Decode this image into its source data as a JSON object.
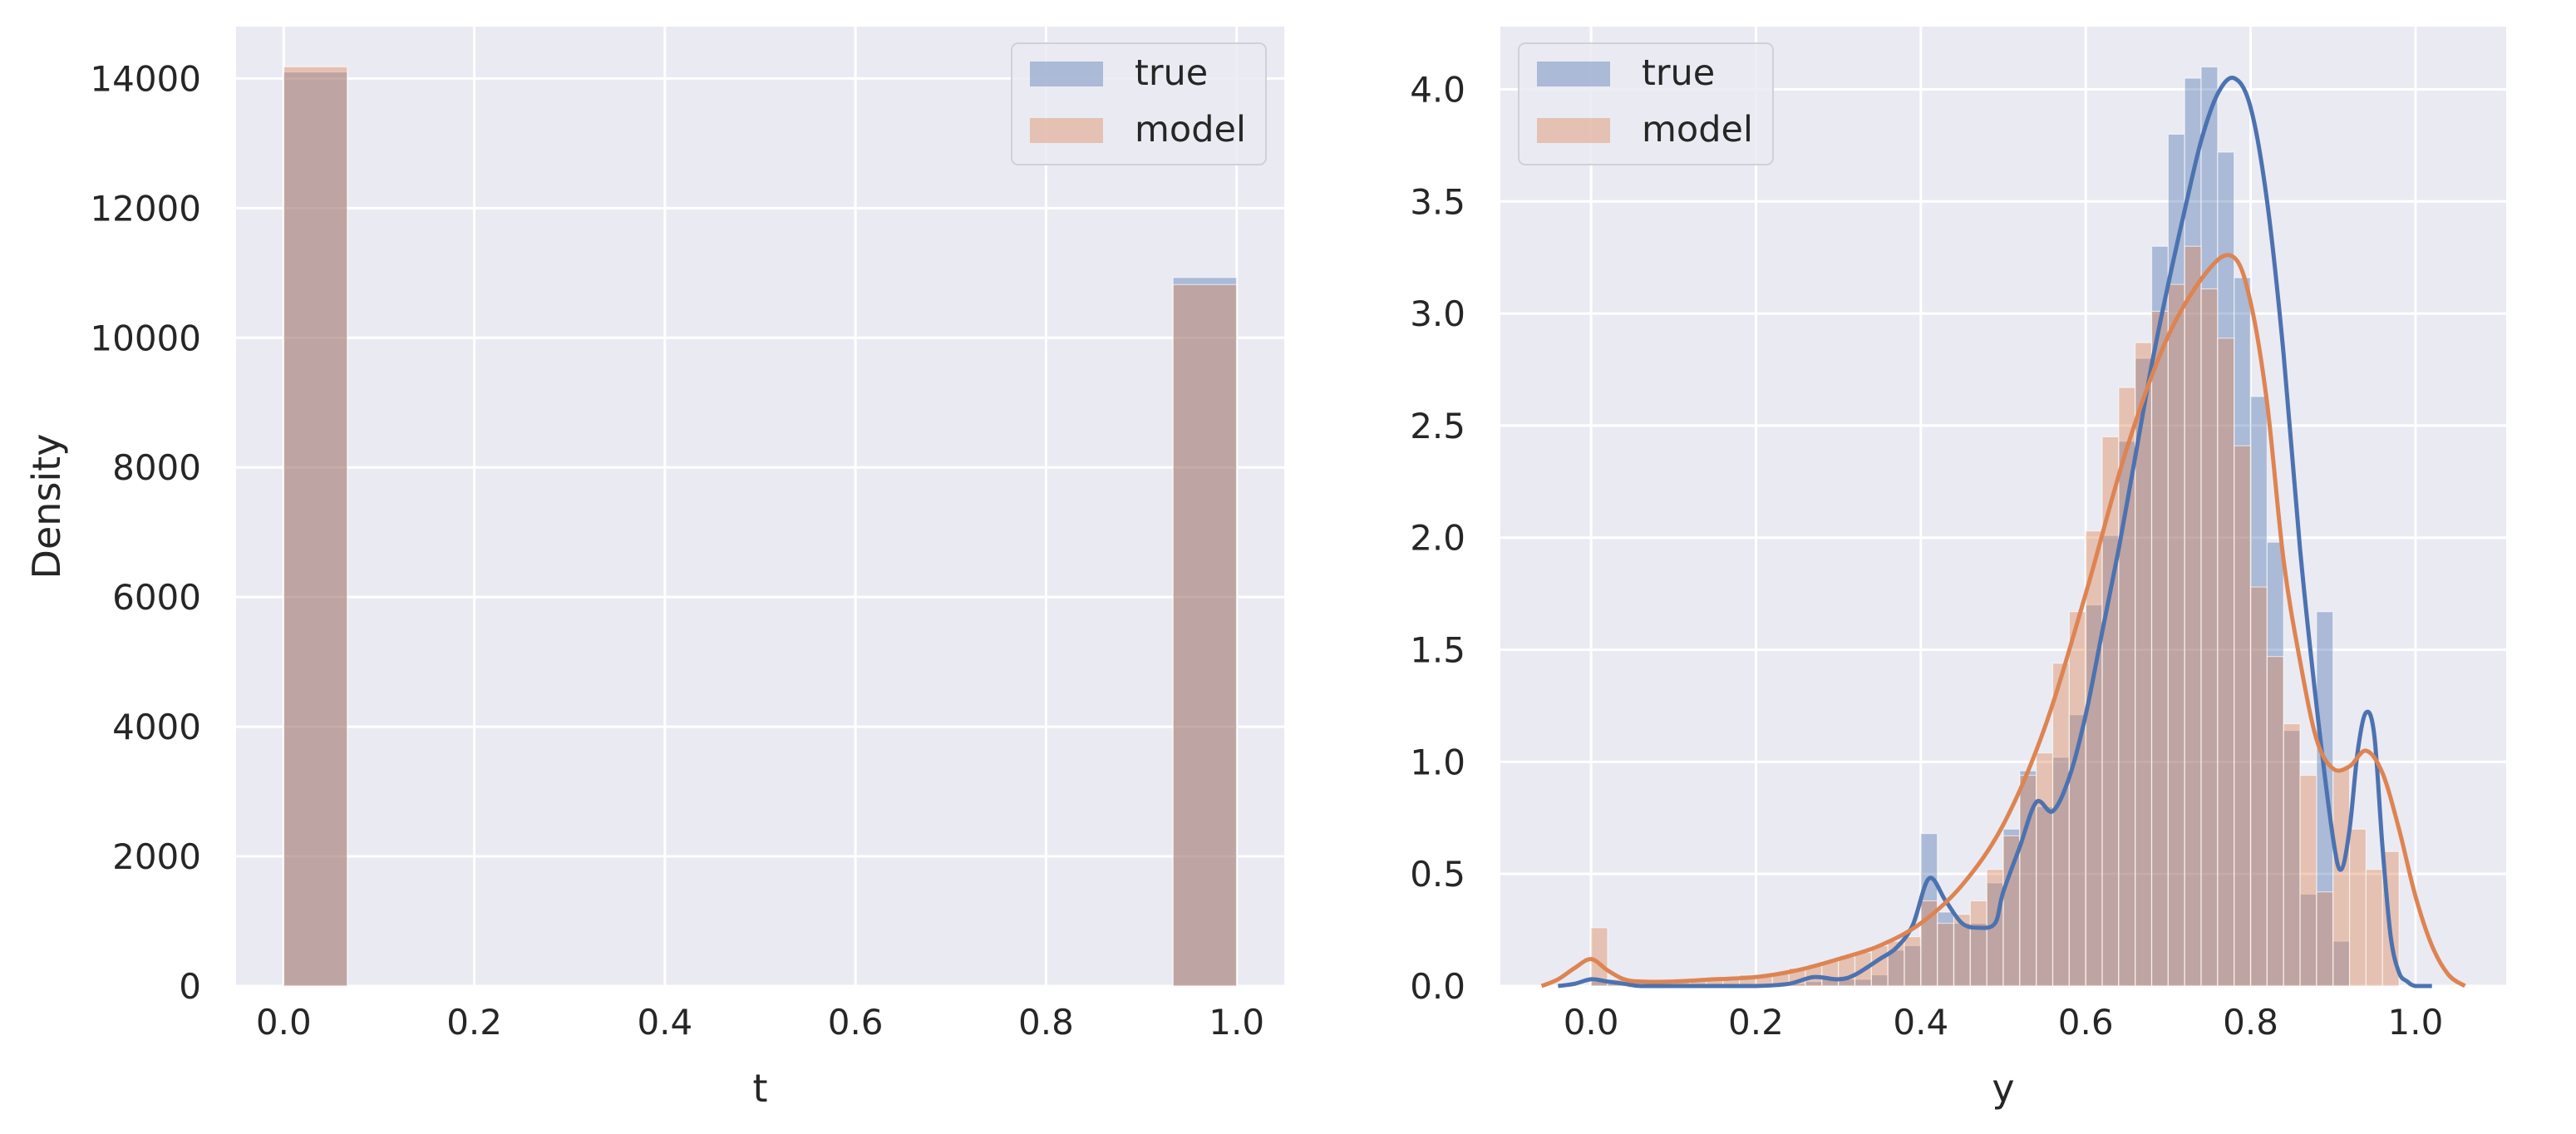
{
  "chart_data": [
    {
      "type": "histogram",
      "xlabel": "t",
      "ylabel": "Density",
      "xlim": [
        -0.05,
        1.05
      ],
      "ylim": [
        0,
        14800
      ],
      "xticks": [
        0.0,
        0.2,
        0.4,
        0.6,
        0.8,
        1.0
      ],
      "xtick_labels": [
        "0.0",
        "0.2",
        "0.4",
        "0.6",
        "0.8",
        "1.0"
      ],
      "yticks": [
        0,
        2000,
        4000,
        6000,
        8000,
        10000,
        12000,
        14000
      ],
      "ytick_labels": [
        "0",
        "2000",
        "4000",
        "6000",
        "8000",
        "10000",
        "12000",
        "14000"
      ],
      "grid": true,
      "legend_position": "top-right",
      "series": [
        {
          "name": "true",
          "color": "#4c72b0",
          "bins": [
            {
              "x0": 0.0,
              "x1": 0.0667,
              "value": 14100
            },
            {
              "x0": 0.9333,
              "x1": 1.0,
              "value": 10930
            }
          ]
        },
        {
          "name": "model",
          "color": "#dd8452",
          "bins": [
            {
              "x0": 0.0,
              "x1": 0.0667,
              "value": 14180
            },
            {
              "x0": 0.9333,
              "x1": 1.0,
              "value": 10820
            }
          ]
        }
      ]
    },
    {
      "type": "histogram",
      "xlabel": "y",
      "ylabel": "",
      "xlim": [
        -0.11,
        1.11
      ],
      "ylim": [
        0,
        4.28
      ],
      "xticks": [
        0.0,
        0.2,
        0.4,
        0.6,
        0.8,
        1.0
      ],
      "xtick_labels": [
        "0.0",
        "0.2",
        "0.4",
        "0.6",
        "0.8",
        "1.0"
      ],
      "yticks": [
        0.0,
        0.5,
        1.0,
        1.5,
        2.0,
        2.5,
        3.0,
        3.5,
        4.0
      ],
      "ytick_labels": [
        "0.0",
        "0.5",
        "1.0",
        "1.5",
        "2.0",
        "2.5",
        "3.0",
        "3.5",
        "4.0"
      ],
      "grid": true,
      "legend_position": "top-left",
      "bin_start": 0.0,
      "bin_width": 0.02,
      "series": [
        {
          "name": "true",
          "color": "#4c72b0",
          "hist": [
            0.02,
            0.01,
            0.0,
            0.0,
            0.0,
            0.0,
            0.0,
            0.0,
            0.0,
            0.0,
            0.0,
            0.01,
            0.01,
            0.02,
            0.04,
            0.03,
            0.03,
            0.05,
            0.16,
            0.18,
            0.68,
            0.33,
            0.28,
            0.28,
            0.46,
            0.7,
            0.96,
            0.8,
            1.02,
            1.21,
            1.7,
            2.01,
            2.43,
            2.8,
            3.3,
            3.8,
            4.05,
            4.1,
            3.72,
            3.16,
            2.63,
            1.98,
            1.14,
            0.41,
            1.67,
            0.2,
            0.0,
            0.0,
            0.0,
            0.0
          ],
          "kde_x": [
            -0.04,
            -0.02,
            0.0,
            0.02,
            0.04,
            0.06,
            0.1,
            0.15,
            0.2,
            0.24,
            0.27,
            0.3,
            0.32,
            0.35,
            0.37,
            0.39,
            0.41,
            0.43,
            0.45,
            0.47,
            0.49,
            0.5,
            0.52,
            0.54,
            0.56,
            0.58,
            0.6,
            0.62,
            0.64,
            0.66,
            0.68,
            0.7,
            0.72,
            0.74,
            0.76,
            0.78,
            0.8,
            0.82,
            0.84,
            0.86,
            0.88,
            0.9,
            0.91,
            0.92,
            0.93,
            0.94,
            0.95,
            0.96,
            0.97,
            0.98,
            0.99,
            1.0,
            1.02
          ],
          "kde_y": [
            0.0,
            0.01,
            0.03,
            0.02,
            0.01,
            0.0,
            0.0,
            0.0,
            0.0,
            0.01,
            0.04,
            0.03,
            0.05,
            0.12,
            0.17,
            0.27,
            0.48,
            0.38,
            0.28,
            0.26,
            0.28,
            0.42,
            0.62,
            0.82,
            0.78,
            0.93,
            1.21,
            1.58,
            1.95,
            2.36,
            2.77,
            3.13,
            3.46,
            3.77,
            3.98,
            4.05,
            3.92,
            3.5,
            2.82,
            1.95,
            1.25,
            0.66,
            0.52,
            0.7,
            1.05,
            1.22,
            1.12,
            0.62,
            0.22,
            0.06,
            0.02,
            0.0,
            0.0
          ]
        },
        {
          "name": "model",
          "color": "#dd8452",
          "hist": [
            0.26,
            0.03,
            0.02,
            0.02,
            0.02,
            0.02,
            0.02,
            0.03,
            0.04,
            0.05,
            0.05,
            0.06,
            0.08,
            0.09,
            0.11,
            0.13,
            0.15,
            0.18,
            0.2,
            0.22,
            0.38,
            0.28,
            0.32,
            0.38,
            0.52,
            0.67,
            0.94,
            1.04,
            1.44,
            1.67,
            2.03,
            2.45,
            2.67,
            2.87,
            3.01,
            3.13,
            3.3,
            3.11,
            2.89,
            2.41,
            1.78,
            1.47,
            1.17,
            0.94,
            0.42,
            0.97,
            0.7,
            0.52,
            0.6,
            0.0
          ],
          "kde_x": [
            -0.06,
            -0.04,
            -0.02,
            0.0,
            0.02,
            0.04,
            0.06,
            0.1,
            0.15,
            0.2,
            0.25,
            0.3,
            0.35,
            0.4,
            0.45,
            0.5,
            0.55,
            0.6,
            0.65,
            0.7,
            0.75,
            0.78,
            0.8,
            0.82,
            0.84,
            0.86,
            0.88,
            0.9,
            0.92,
            0.94,
            0.96,
            0.98,
            1.0,
            1.02,
            1.04,
            1.06
          ],
          "kde_y": [
            0.0,
            0.03,
            0.08,
            0.12,
            0.07,
            0.03,
            0.02,
            0.02,
            0.03,
            0.04,
            0.07,
            0.12,
            0.18,
            0.28,
            0.45,
            0.72,
            1.15,
            1.75,
            2.4,
            2.9,
            3.2,
            3.25,
            3.05,
            2.6,
            1.9,
            1.45,
            1.1,
            0.97,
            0.98,
            1.05,
            0.95,
            0.7,
            0.4,
            0.18,
            0.05,
            0.0
          ]
        }
      ]
    }
  ]
}
